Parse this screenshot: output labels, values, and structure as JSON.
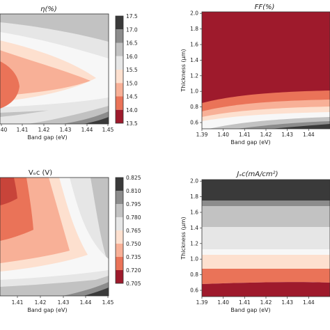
{
  "palette": {
    "grey_dark": "#3a3a3a",
    "grey_mid": "#8c8c8c",
    "grey_light": "#c2c2c2",
    "grey_pale": "#e6e6e6",
    "white": "#f7f7f7",
    "peach": "#fde0cf",
    "salmon_light": "#f8b097",
    "salmon": "#ea7358",
    "red": "#c8443a",
    "crimson": "#9e1a2c"
  },
  "chart_data": [
    {
      "id": "eta",
      "type": "heatmap",
      "title": "η(%)",
      "xlabel": "Band gap (eV)",
      "ylabel": "",
      "xlim": [
        1.39,
        1.45
      ],
      "x_ticks": [
        "1.40",
        "1.41",
        "1.42",
        "1.43",
        "1.44",
        "1.45"
      ],
      "colorbar": {
        "ticks": [
          "13.5",
          "14.0",
          "14.5",
          "15.0",
          "15.5",
          "16.0",
          "16.5",
          "17.0",
          "17.5"
        ],
        "levels": [
          13.5,
          14.0,
          14.5,
          15.0,
          15.5,
          16.0,
          16.5,
          17.0,
          17.5
        ]
      }
    },
    {
      "id": "ff",
      "type": "heatmap",
      "title": "FF(%)",
      "xlabel": "Band gap (eV)",
      "ylabel": "Thickness (μm)",
      "xlim": [
        1.39,
        1.45
      ],
      "ylim": [
        0.5,
        2.0
      ],
      "x_ticks": [
        "1.39",
        "1.40",
        "1.41",
        "1.42",
        "1.43",
        "1.44"
      ],
      "y_ticks": [
        "0.6",
        "0.8",
        "1.0",
        "1.2",
        "1.4",
        "1.6",
        "1.8",
        "2.0"
      ]
    },
    {
      "id": "voc",
      "type": "heatmap",
      "title": "Vₒᴄ (V)",
      "xlabel": "Band gap (eV)",
      "ylabel": "",
      "xlim": [
        1.39,
        1.45
      ],
      "x_ticks": [
        "1.41",
        "1.42",
        "1.43",
        "1.44",
        "1.45"
      ],
      "colorbar": {
        "ticks": [
          "0.705",
          "0.720",
          "0.735",
          "0.750",
          "0.765",
          "0.780",
          "0.795",
          "0.810",
          "0.825"
        ],
        "levels": [
          0.705,
          0.72,
          0.735,
          0.75,
          0.765,
          0.78,
          0.795,
          0.81,
          0.825
        ]
      }
    },
    {
      "id": "jsc",
      "type": "heatmap",
      "title": "Jₛᴄ(mA/cm²)",
      "xlabel": "Band gap (eV)",
      "ylabel": "Thickness (μm)",
      "xlim": [
        1.39,
        1.45
      ],
      "ylim": [
        0.5,
        2.0
      ],
      "x_ticks": [
        "1.39",
        "1.40",
        "1.41",
        "1.42",
        "1.43",
        "1.44"
      ],
      "y_ticks": [
        "0.6",
        "0.8",
        "1.0",
        "1.2",
        "1.4",
        "1.6",
        "1.8",
        "2.0"
      ]
    }
  ]
}
